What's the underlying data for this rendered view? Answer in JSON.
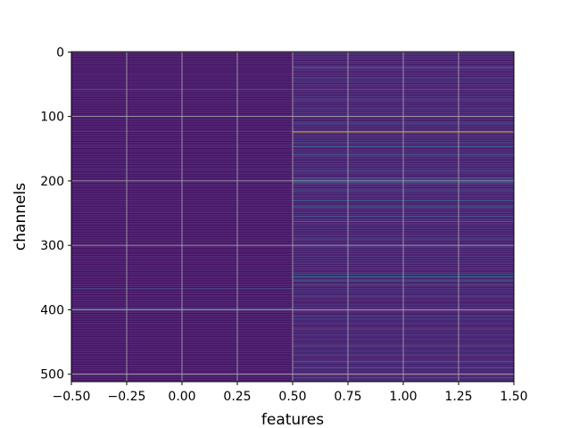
{
  "chart_data": {
    "type": "heatmap",
    "title": "",
    "xlabel": "features",
    "ylabel": "channels",
    "xlim": [
      -0.5,
      1.5
    ],
    "ylim": [
      511.5,
      -0.5
    ],
    "x_ticks": [
      "−0.50",
      "−0.25",
      "0.00",
      "0.25",
      "0.50",
      "0.75",
      "1.00",
      "1.25",
      "1.50"
    ],
    "x_tick_values": [
      -0.5,
      -0.25,
      0.0,
      0.25,
      0.5,
      0.75,
      1.0,
      1.25,
      1.5
    ],
    "y_ticks": [
      "0",
      "100",
      "200",
      "300",
      "400",
      "500"
    ],
    "y_tick_values": [
      0,
      100,
      200,
      300,
      400,
      500
    ],
    "grid": true,
    "colormap": "viridis",
    "n_rows": 512,
    "n_cols": 2,
    "columns": [
      {
        "feature": 0,
        "base_value": 0.08,
        "notable_rows": [
          {
            "channel": 58,
            "value": 0.35
          },
          {
            "channel": 123,
            "value": 0.2
          },
          {
            "channel": 145,
            "value": 0.18
          },
          {
            "channel": 182,
            "value": 0.16
          },
          {
            "channel": 367,
            "value": 0.22
          },
          {
            "channel": 398,
            "value": 0.45
          },
          {
            "channel": 500,
            "value": 0.2
          }
        ]
      },
      {
        "feature": 1,
        "base_value": 0.12,
        "notable_rows": [
          {
            "channel": 24,
            "value": 0.45
          },
          {
            "channel": 40,
            "value": 0.3
          },
          {
            "channel": 58,
            "value": 0.35
          },
          {
            "channel": 74,
            "value": 0.3
          },
          {
            "channel": 110,
            "value": 0.28
          },
          {
            "channel": 124,
            "value": 1.0
          },
          {
            "channel": 141,
            "value": 0.4
          },
          {
            "channel": 147,
            "value": 0.45
          },
          {
            "channel": 160,
            "value": 0.4
          },
          {
            "channel": 185,
            "value": 0.3
          },
          {
            "channel": 196,
            "value": 0.5
          },
          {
            "channel": 203,
            "value": 0.45
          },
          {
            "channel": 215,
            "value": 0.3
          },
          {
            "channel": 230,
            "value": 0.4
          },
          {
            "channel": 240,
            "value": 0.45
          },
          {
            "channel": 255,
            "value": 0.35
          },
          {
            "channel": 263,
            "value": 0.5
          },
          {
            "channel": 290,
            "value": 0.3
          },
          {
            "channel": 345,
            "value": 0.4
          },
          {
            "channel": 349,
            "value": 0.55
          },
          {
            "channel": 355,
            "value": 0.45
          },
          {
            "channel": 362,
            "value": 0.35
          },
          {
            "channel": 380,
            "value": 0.3
          },
          {
            "channel": 410,
            "value": 0.3
          },
          {
            "channel": 430,
            "value": 0.35
          },
          {
            "channel": 455,
            "value": 0.3
          },
          {
            "channel": 470,
            "value": 0.3
          },
          {
            "channel": 480,
            "value": 0.4
          },
          {
            "channel": 490,
            "value": 0.35
          },
          {
            "channel": 505,
            "value": 0.3
          }
        ]
      }
    ]
  }
}
